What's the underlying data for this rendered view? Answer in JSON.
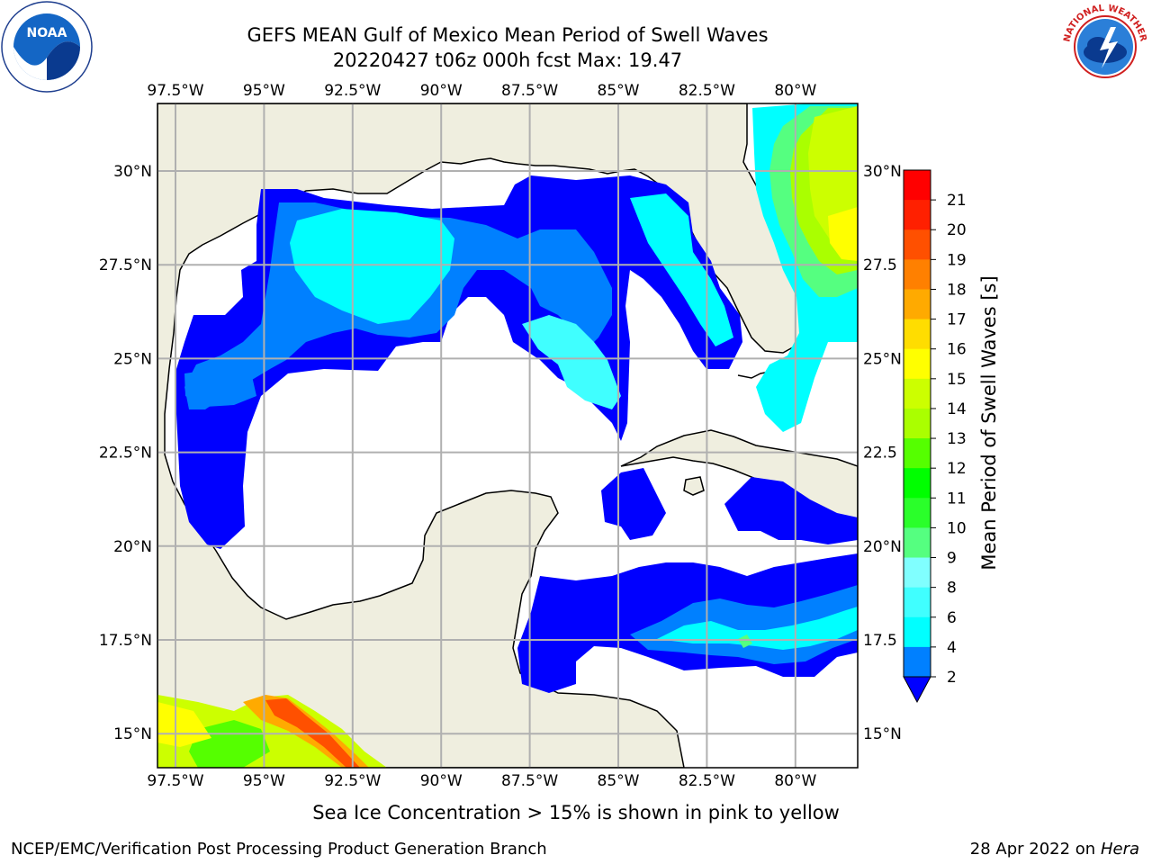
{
  "title": {
    "line1": "GEFS MEAN Gulf of Mexico Mean Period of Swell Waves",
    "line2": "20220427 t06z 000h fcst   Max: 19.47"
  },
  "map": {
    "lon_ticks": [
      "97.5°W",
      "95°W",
      "92.5°W",
      "90°W",
      "87.5°W",
      "85°W",
      "82.5°W",
      "80°W"
    ],
    "lat_ticks": [
      "30°N",
      "27.5°N",
      "25°N",
      "22.5°N",
      "20°N",
      "17.5°N",
      "15°N"
    ],
    "lat_ticks_right": [
      "30°N",
      "27.5",
      "25°N",
      "22.5",
      "20°N",
      "17.5",
      "15°N"
    ],
    "land_color": "#efeedf",
    "ocean_color": "#ffffff"
  },
  "colorbar": {
    "label": "Mean Period of Swell Waves [s]",
    "ticks": [
      "2",
      "4",
      "6",
      "8",
      "9",
      "10",
      "11",
      "12",
      "13",
      "14",
      "15",
      "16",
      "17",
      "18",
      "19",
      "20",
      "21"
    ],
    "colors": [
      "#0000ff",
      "#0080ff",
      "#00ffff",
      "#40ffff",
      "#80ffff",
      "#55ff80",
      "#2aff2a",
      "#00ff00",
      "#55ff00",
      "#aaff00",
      "#ccff00",
      "#ffff00",
      "#ffdd00",
      "#ffaa00",
      "#ff8000",
      "#ff5000",
      "#ff2000",
      "#ff0000"
    ]
  },
  "caption": "Sea Ice Concentration > 15% is shown in pink to yellow",
  "footer": {
    "left": "NCEP/EMC/Verification Post Processing Product Generation Branch",
    "date": "28 Apr 2022 on ",
    "machine": "Hera"
  },
  "logos": {
    "noaa_text": "NOAA",
    "nws_text": "NATIONAL WEATHER SERVICE"
  }
}
